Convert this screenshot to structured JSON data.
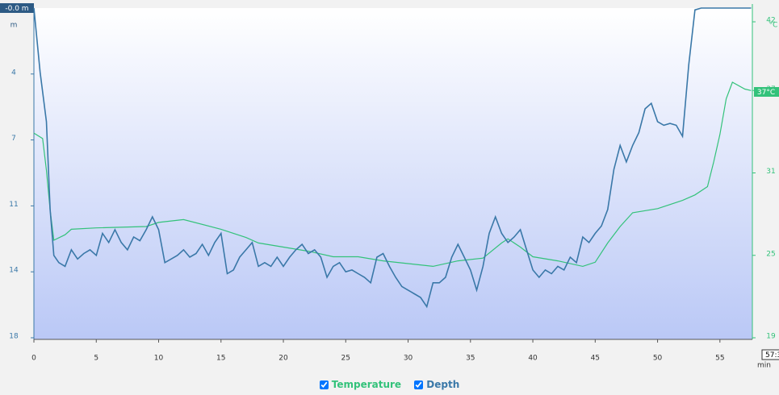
{
  "chart_data": {
    "type": "line",
    "depth_marker": "-0.0 m",
    "depth_unit": "m",
    "temp_unit": "°C",
    "temp_marker": "37°C",
    "time_marker": "57:3",
    "x_unit": "min",
    "xlim": [
      0,
      57.6
    ],
    "xticks": [
      0,
      5,
      10,
      15,
      20,
      25,
      30,
      35,
      40,
      45,
      50,
      55
    ],
    "ylim": [
      0,
      18
    ],
    "y_inverted": true,
    "yticks": [
      {
        "value": 3.6,
        "label": "4"
      },
      {
        "value": 7.2,
        "label": "7"
      },
      {
        "value": 10.8,
        "label": "11"
      },
      {
        "value": 14.4,
        "label": "14"
      },
      {
        "value": 18,
        "label": "18"
      }
    ],
    "y2lim": [
      19,
      43
    ],
    "y2ticks": [
      19,
      25,
      31,
      37,
      42
    ],
    "series": [
      {
        "name": "Temperature",
        "color": "#33c27a",
        "axis": "y2",
        "x": [
          0,
          0.7,
          1,
          1.3,
          1.6,
          2.5,
          3,
          5,
          9,
          10,
          12,
          15,
          17,
          18,
          20,
          22,
          24,
          26,
          28,
          30,
          32,
          34,
          36,
          37.5,
          38,
          39,
          40,
          42,
          44,
          45,
          46,
          47,
          48,
          50,
          52,
          53,
          54,
          54.5,
          55,
          55.5,
          56,
          57,
          57.5
        ],
        "values": [
          33.9,
          33.5,
          31.2,
          28.3,
          26.1,
          26.5,
          26.9,
          27,
          27.1,
          27.4,
          27.6,
          26.9,
          26.3,
          25.9,
          25.6,
          25.3,
          24.9,
          24.9,
          24.6,
          24.4,
          24.2,
          24.6,
          24.8,
          25.9,
          26.2,
          25.6,
          24.9,
          24.6,
          24.2,
          24.5,
          25.9,
          27.1,
          28.1,
          28.4,
          29,
          29.4,
          30,
          31.8,
          33.8,
          36.4,
          37.6,
          37.1,
          37
        ]
      },
      {
        "name": "Depth",
        "color": "#3a78a8",
        "axis": "y",
        "x": [
          0,
          0.5,
          1,
          1.3,
          1.6,
          2,
          2.5,
          3,
          3.5,
          4,
          4.5,
          5,
          5.5,
          6,
          6.5,
          7,
          7.5,
          8,
          8.5,
          9,
          9.5,
          10,
          10.5,
          11,
          11.5,
          12,
          12.5,
          13,
          13.5,
          14,
          14.5,
          15,
          15.5,
          16,
          16.5,
          17,
          17.5,
          18,
          18.5,
          19,
          19.5,
          20,
          20.5,
          21,
          21.5,
          22,
          22.5,
          23,
          23.5,
          24,
          24.5,
          25,
          25.5,
          26,
          26.5,
          27,
          27.5,
          28,
          28.5,
          29,
          29.5,
          30,
          30.5,
          31,
          31.5,
          32,
          32.5,
          33,
          33.5,
          34,
          34.5,
          35,
          35.5,
          36,
          36.5,
          37,
          37.5,
          38,
          38.5,
          39,
          39.5,
          40,
          40.5,
          41,
          41.5,
          42,
          42.5,
          43,
          43.5,
          44,
          44.5,
          45,
          45.5,
          46,
          46.5,
          47,
          47.5,
          48,
          48.5,
          49,
          49.5,
          50,
          50.5,
          51,
          51.5,
          52,
          52.5,
          53,
          53.5,
          57.5
        ],
        "values": [
          0,
          3.5,
          6.2,
          11,
          13.5,
          13.9,
          14.1,
          13.2,
          13.7,
          13.4,
          13.2,
          13.5,
          12.3,
          12.8,
          12.1,
          12.8,
          13.2,
          12.5,
          12.7,
          12.1,
          11.4,
          12.1,
          13.9,
          13.7,
          13.5,
          13.2,
          13.6,
          13.4,
          12.9,
          13.5,
          12.8,
          12.3,
          14.5,
          14.3,
          13.6,
          13.2,
          12.8,
          14.1,
          13.9,
          14.1,
          13.6,
          14.1,
          13.6,
          13.2,
          12.9,
          13.4,
          13.2,
          13.6,
          14.7,
          14.1,
          13.9,
          14.4,
          14.3,
          14.5,
          14.7,
          15,
          13.6,
          13.4,
          14.1,
          14.7,
          15.2,
          15.4,
          15.6,
          15.8,
          16.3,
          15,
          15,
          14.7,
          13.6,
          12.9,
          13.6,
          14.3,
          15.4,
          14.1,
          12.3,
          11.4,
          12.3,
          12.8,
          12.5,
          12.1,
          13.2,
          14.3,
          14.7,
          14.3,
          14.5,
          14.1,
          14.3,
          13.6,
          13.9,
          12.5,
          12.8,
          12.3,
          11.9,
          11,
          8.8,
          7.5,
          8.4,
          7.5,
          6.8,
          5.5,
          5.2,
          6.2,
          6.4,
          6.3,
          6.4,
          7,
          3.1,
          0.1,
          0,
          0
        ]
      }
    ]
  }
}
